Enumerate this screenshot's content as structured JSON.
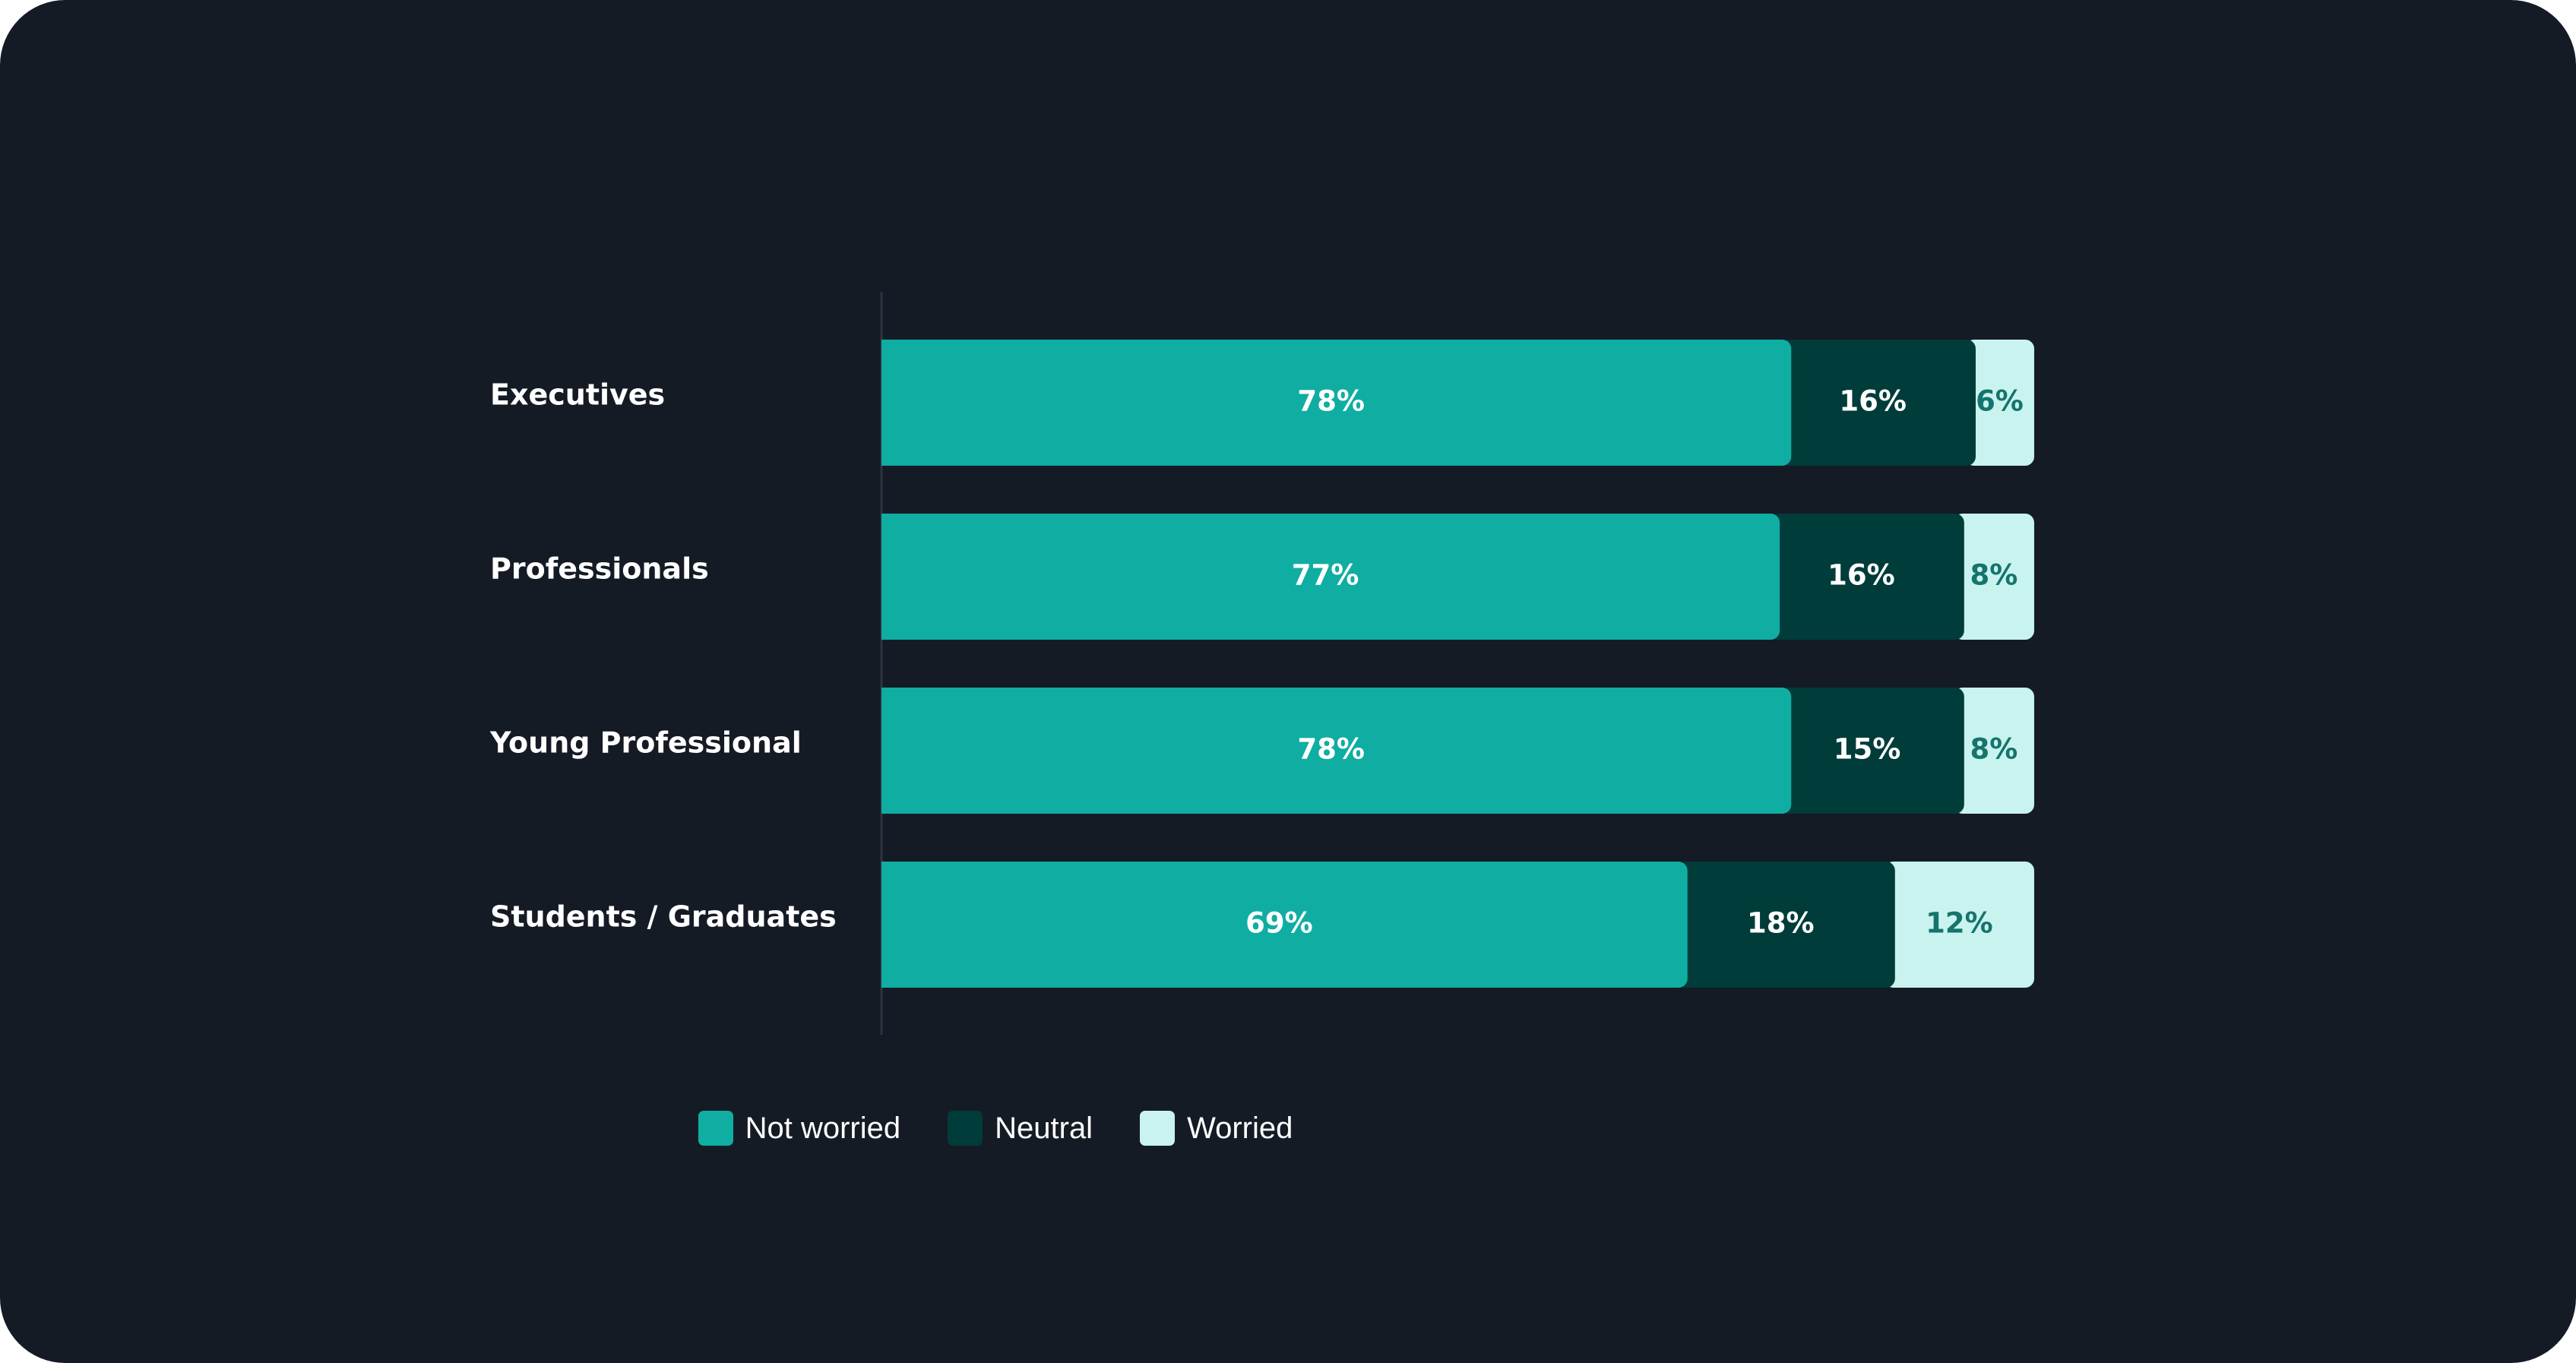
{
  "chart_data": {
    "type": "bar",
    "orientation": "horizontal",
    "stacked": true,
    "categories": [
      "Executives",
      "Professionals",
      "Young Professional",
      "Students / Graduates"
    ],
    "series": [
      {
        "name": "Not worried",
        "values": [
          78,
          77,
          78,
          69
        ],
        "labels": [
          "78%",
          "77%",
          "78%",
          "69%"
        ],
        "color": "#10ada3",
        "text_color": "#ffffff"
      },
      {
        "name": "Neutral",
        "values": [
          16,
          16,
          15,
          18
        ],
        "labels": [
          "16%",
          "16%",
          "15%",
          "18%"
        ],
        "color": "#003c39",
        "text_color": "#ffffff"
      },
      {
        "name": "Worried",
        "values": [
          6,
          8,
          8,
          12
        ],
        "labels": [
          "6%",
          "8%",
          "8%",
          "12%"
        ],
        "color": "#c8f3ee",
        "text_color": "#15746c"
      }
    ],
    "xlim": [
      0,
      100
    ],
    "grid": false,
    "legend_position": "bottom"
  },
  "colors": {
    "background": "#151b25",
    "axis_line": "#2c3442"
  }
}
